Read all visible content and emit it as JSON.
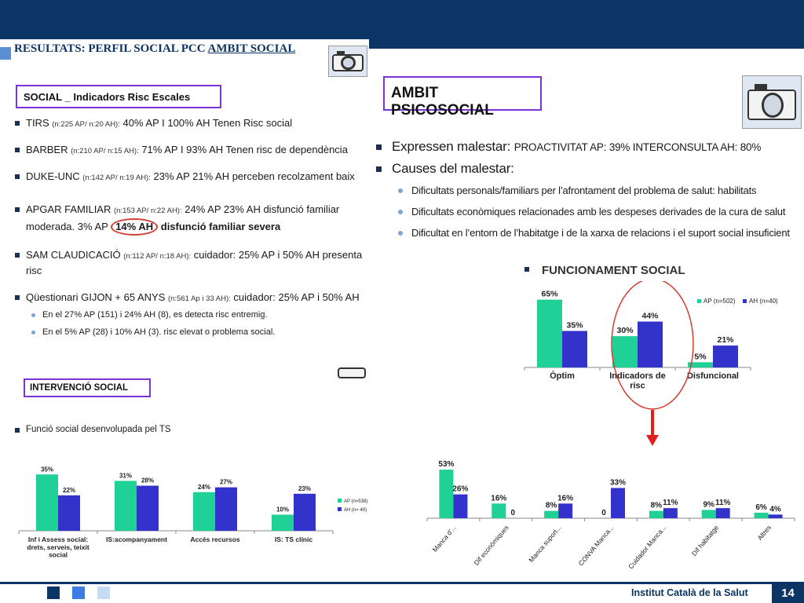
{
  "slide_title_prefix": "RESULTATS: PERFIL SOCIAL PCC",
  "slide_title_underlined": "AMBIT SOCIAL",
  "left": {
    "box_social": "SOCIAL _ Indicadors Risc Escales",
    "bullets": [
      {
        "name": "TIRS",
        "n": "(n:225 AP/ n:20 AH):",
        "text": "40% AP I 100% AH Tenen Risc social"
      },
      {
        "name": "BARBER",
        "n": "(n:210 AP/ n:15 AH):",
        "text": "71% AP I 93% AH Tenen risc de dependència"
      },
      {
        "name": "DUKE-UNC",
        "n": "(n:142 AP/ n:19 AH):",
        "text": "23% AP 21% AH perceben recolzament baix"
      },
      {
        "name": "APGAR FAMILIAR",
        "n": "(n:153 AP/ n:22 AH):",
        "text": "24% AP  23% AH disfunció familiar moderada. 3% AP",
        "circled": "14% AH",
        "tail": "disfunció familiar severa"
      },
      {
        "name": "SAM CLAUDICACIÓ",
        "n": "(n:112 AP/ n:18 AH):",
        "text": "cuidador: 25% AP i 50% AH presenta risc"
      },
      {
        "name": "Qüestionari GIJON + 65 ANYS",
        "n": "(n:561 Ap i 33 AH):",
        "text": "cuidador: 25% AP i 50% AH"
      }
    ],
    "sub_bullets": [
      "En el 27% AP (151) i 24% AH (8), es detecta risc entremig.",
      "En el 5% AP (28) i 10% AH (3). risc elevat o problema social."
    ],
    "box_intervencio": "INTERVENCIÓ SOCIAL",
    "funcio_title": "Funció social desenvolupada pel TS"
  },
  "right": {
    "box_ambit": "AMBIT PSICOSOCIAL",
    "expressen_label": "Expressen malestar:",
    "expressen_values": "PROACTIVITAT  AP: 39%   INTERCONSULTA  AH: 80%",
    "causes_label": "Causes del malestar:",
    "causes": [
      "Dificultats personals/familiars per l’afrontament del problema de salut: habilitats",
      "Dificultats econòmiques relacionades amb les despeses derivades de la cura de salut",
      "Dificultat en l’entorn de l’habitatge i de la xarxa de relacions i el suport social insuficient"
    ],
    "func_social_title": "FUNCIONAMENT SOCIAL"
  },
  "footer": {
    "org": "Institut Català de la Salut",
    "page": "14"
  },
  "colors": {
    "AP": "#1fd196",
    "AH": "#3333cc",
    "header": "#0b3564",
    "highlight": "#d63d2f",
    "box_border": "#7a33d6"
  },
  "chart_data": [
    {
      "type": "bar",
      "categories": [
        "Inf i Assess social: drets, serveis, teixit social",
        "IS:acompanyament",
        "Accés recursos",
        "IS: TS clínic"
      ],
      "series": [
        {
          "name": "AP (n=538)",
          "values": [
            35,
            31,
            24,
            10
          ]
        },
        {
          "name": "AH (n= 40)",
          "values": [
            22,
            28,
            27,
            23
          ]
        }
      ],
      "ylim": [
        0,
        40
      ],
      "legend": "right"
    },
    {
      "type": "bar",
      "categories": [
        "Òptim",
        "Indicadors de risc",
        "Disfuncional"
      ],
      "series": [
        {
          "name": "AP (n=502)",
          "values": [
            65,
            30,
            5
          ]
        },
        {
          "name": "AH (n=40)",
          "values": [
            35,
            44,
            21
          ]
        }
      ],
      "ylim": [
        0,
        70
      ],
      "legend": "top-right"
    },
    {
      "type": "bar",
      "categories": [
        "Manca d'...",
        "Dif econòmiques",
        "Manca suport...",
        "CONVA Manca...",
        "Cuidador Manca...",
        "Dif habitatge",
        "Altres"
      ],
      "series": [
        {
          "name": "AP",
          "values": [
            53,
            16,
            8,
            0,
            8,
            9,
            6
          ]
        },
        {
          "name": "AH",
          "values": [
            26,
            0,
            16,
            33,
            11,
            11,
            4
          ]
        }
      ],
      "ylim": [
        0,
        60
      ],
      "legend": "none"
    }
  ]
}
